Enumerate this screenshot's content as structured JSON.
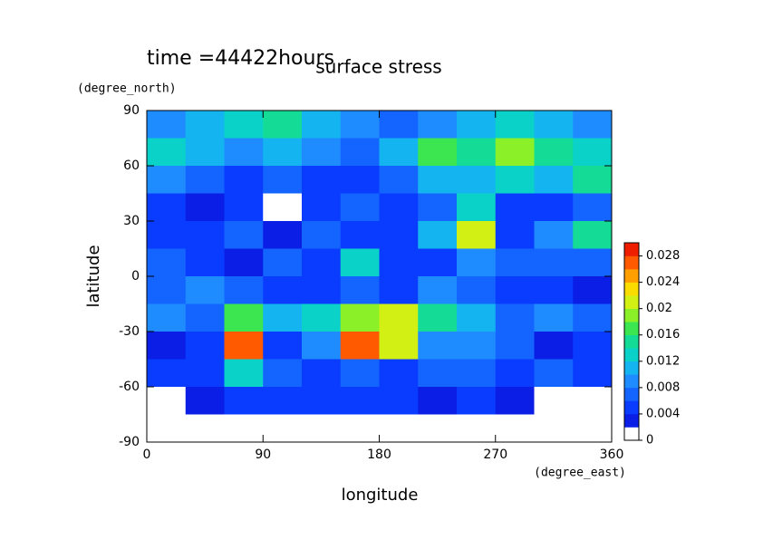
{
  "chart_data": {
    "type": "contour",
    "title": "surface stress",
    "subtitle": "time =44422hours",
    "x_label": "longitude",
    "x_unit": "(degree_east)",
    "y_label": "latitude",
    "y_unit": "(degree_north)",
    "xlim": [
      0,
      360
    ],
    "xticks": [
      0,
      90,
      180,
      270,
      360
    ],
    "ylim": [
      -90,
      90
    ],
    "yticks": [
      90,
      60,
      30,
      0,
      -30,
      -60,
      -90
    ],
    "zlim": [
      0,
      0.03
    ],
    "zticks": [
      0,
      0.004,
      0.008,
      0.012,
      0.016,
      0.02,
      0.024,
      0.028
    ],
    "colors": [
      "#ffffff",
      "#0a1ee6",
      "#0a3cff",
      "#1464ff",
      "#1e8cff",
      "#14b4f0",
      "#0ad2c8",
      "#14dc96",
      "#3ce650",
      "#8cf028",
      "#d2f014",
      "#fadc00",
      "#ffa000",
      "#ff5a00",
      "#f01e00"
    ],
    "z": [
      [
        0.008,
        0.01,
        0.012,
        0.014,
        0.01,
        0.008,
        0.006,
        0.008,
        0.01,
        0.012,
        0.01,
        0.008
      ],
      [
        0.012,
        0.01,
        0.008,
        0.01,
        0.008,
        0.006,
        0.01,
        0.016,
        0.014,
        0.018,
        0.014,
        0.012
      ],
      [
        0.008,
        0.006,
        0.004,
        0.006,
        0.004,
        0.004,
        0.006,
        0.01,
        0.01,
        0.012,
        0.01,
        0.014
      ],
      [
        0.004,
        0.002,
        0.004,
        0,
        0.004,
        0.006,
        0.004,
        0.006,
        0.012,
        0.004,
        0.004,
        0.006
      ],
      [
        0.004,
        0.004,
        0.006,
        0.002,
        0.006,
        0.004,
        0.004,
        0.01,
        0.02,
        0.004,
        0.008,
        0.014
      ],
      [
        0.006,
        0.004,
        0.002,
        0.006,
        0.004,
        0.012,
        0.004,
        0.004,
        0.008,
        0.006,
        0.006,
        0.006
      ],
      [
        0.006,
        0.008,
        0.006,
        0.004,
        0.004,
        0.006,
        0.004,
        0.008,
        0.006,
        0.004,
        0.004,
        0.002
      ],
      [
        0.008,
        0.006,
        0.016,
        0.01,
        0.012,
        0.018,
        0.02,
        0.014,
        0.01,
        0.006,
        0.008,
        0.006
      ],
      [
        0.002,
        0.004,
        0.026,
        0.004,
        0.008,
        0.026,
        0.02,
        0.008,
        0.008,
        0.006,
        0.002,
        0.004
      ],
      [
        0.004,
        0.004,
        0.012,
        0.006,
        0.004,
        0.006,
        0.004,
        0.006,
        0.006,
        0.004,
        0.006,
        0.004
      ],
      [
        0,
        0.002,
        0.004,
        0.004,
        0.004,
        0.004,
        0.004,
        0.002,
        0.004,
        0.002,
        0,
        0
      ],
      [
        0,
        0,
        0,
        0,
        0,
        0,
        0,
        0,
        0,
        0,
        0,
        0
      ]
    ]
  }
}
